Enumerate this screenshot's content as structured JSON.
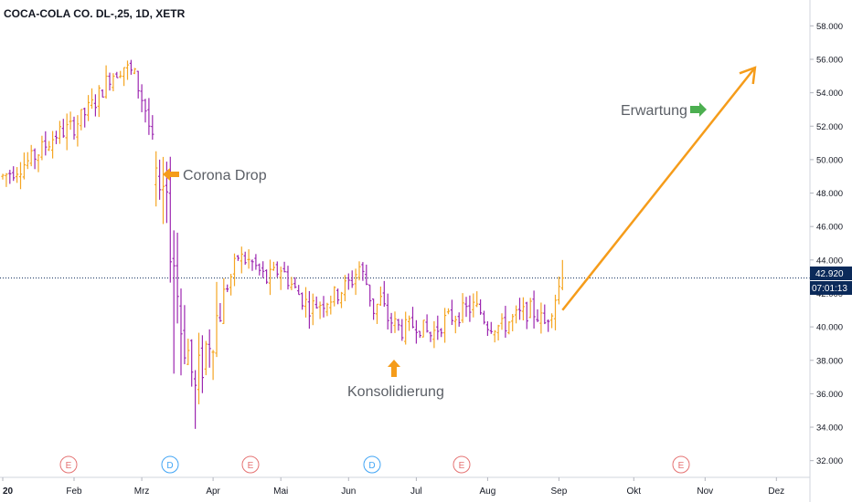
{
  "header": {
    "symbol_title": "COCA-COLA CO. DL-,25, 1D, XETR"
  },
  "price_badge": {
    "price": "42.920",
    "countdown": "07:01:13",
    "color": "#0b2a5a"
  },
  "annotations": {
    "corona_drop": "Corona Drop",
    "konsolidierung": "Konsolidierung",
    "erwartung": "Erwartung"
  },
  "event_markers": [
    {
      "letter": "E",
      "month": "Feb",
      "color": "#e57373"
    },
    {
      "letter": "D",
      "month": "Mrz",
      "color": "#42a5f5"
    },
    {
      "letter": "E",
      "month": "Apr",
      "color": "#e57373"
    },
    {
      "letter": "D",
      "month": "Jun",
      "color": "#42a5f5"
    },
    {
      "letter": "E",
      "month": "Jul",
      "color": "#e57373"
    },
    {
      "letter": "E",
      "month": "Okt",
      "color": "#e57373"
    }
  ],
  "colors": {
    "up_bar": "#f5a623",
    "down_bar": "#9c27b0",
    "arrow_orange": "#f59c1a",
    "arrow_green": "#4caf50",
    "axis_text": "#131722",
    "price_line": "#0b2a5a"
  },
  "chart_data": {
    "type": "ohlc",
    "x_ticks": [
      "20",
      "Feb",
      "Mrz",
      "Apr",
      "Mai",
      "Jun",
      "Jul",
      "Aug",
      "Sep",
      "Okt",
      "Nov",
      "Dez"
    ],
    "y_ticks": [
      "32.000",
      "34.000",
      "36.000",
      "38.000",
      "40.000",
      "42.000",
      "44.000",
      "46.000",
      "48.000",
      "50.000",
      "52.000",
      "54.000",
      "56.000",
      "58.000"
    ],
    "ylim": [
      31,
      59
    ],
    "last_price": 42.92,
    "anchors": [
      {
        "t": 0,
        "p": 49.0
      },
      {
        "t": 8,
        "p": 50.0
      },
      {
        "t": 15,
        "p": 51.5
      },
      {
        "t": 20,
        "p": 52.0
      },
      {
        "t": 26,
        "p": 53.5
      },
      {
        "t": 30,
        "p": 55.0
      },
      {
        "t": 34,
        "p": 55.6
      },
      {
        "t": 37,
        "p": 55.0
      },
      {
        "t": 40,
        "p": 53.0
      },
      {
        "t": 42,
        "p": 51.0
      },
      {
        "t": 44,
        "p": 49.0
      },
      {
        "t": 46,
        "p": 46.5
      },
      {
        "t": 48,
        "p": 44.0
      },
      {
        "t": 50,
        "p": 40.0
      },
      {
        "t": 52,
        "p": 38.5
      },
      {
        "t": 54,
        "p": 36.0
      },
      {
        "t": 56,
        "p": 38.0
      },
      {
        "t": 58,
        "p": 39.5
      },
      {
        "t": 60,
        "p": 40.5
      },
      {
        "t": 62,
        "p": 42.0
      },
      {
        "t": 64,
        "p": 43.0
      },
      {
        "t": 66,
        "p": 44.2
      },
      {
        "t": 70,
        "p": 43.8
      },
      {
        "t": 74,
        "p": 42.8
      },
      {
        "t": 78,
        "p": 43.5
      },
      {
        "t": 82,
        "p": 42.2
      },
      {
        "t": 86,
        "p": 41.2
      },
      {
        "t": 90,
        "p": 41.5
      },
      {
        "t": 94,
        "p": 42.0
      },
      {
        "t": 98,
        "p": 42.8
      },
      {
        "t": 100,
        "p": 43.6
      },
      {
        "t": 102,
        "p": 42.6
      },
      {
        "t": 104,
        "p": 41.0
      },
      {
        "t": 106,
        "p": 41.6
      },
      {
        "t": 108,
        "p": 40.5
      },
      {
        "t": 112,
        "p": 39.8
      },
      {
        "t": 116,
        "p": 40.2
      },
      {
        "t": 120,
        "p": 39.5
      },
      {
        "t": 124,
        "p": 40.4
      },
      {
        "t": 128,
        "p": 40.8
      },
      {
        "t": 132,
        "p": 41.2
      },
      {
        "t": 134,
        "p": 40.9
      },
      {
        "t": 136,
        "p": 40.2
      },
      {
        "t": 140,
        "p": 40.0
      },
      {
        "t": 144,
        "p": 40.6
      },
      {
        "t": 148,
        "p": 41.0
      },
      {
        "t": 150,
        "p": 40.7
      },
      {
        "t": 152,
        "p": 40.2
      },
      {
        "t": 154,
        "p": 41.2
      },
      {
        "t": 156,
        "p": 42.4
      },
      {
        "t": 157,
        "p": 42.9
      }
    ],
    "projection": {
      "from": {
        "t": 157,
        "p": 41.0
      },
      "to": {
        "t": 211,
        "p": 55.5
      }
    },
    "gap_bars": [
      {
        "t": 43,
        "o": 48.5,
        "h": 50.5,
        "l": 47.2,
        "c": 49.5
      },
      {
        "t": 44,
        "o": 49.0,
        "h": 50.0,
        "l": 47.6,
        "c": 48.2
      }
    ]
  }
}
